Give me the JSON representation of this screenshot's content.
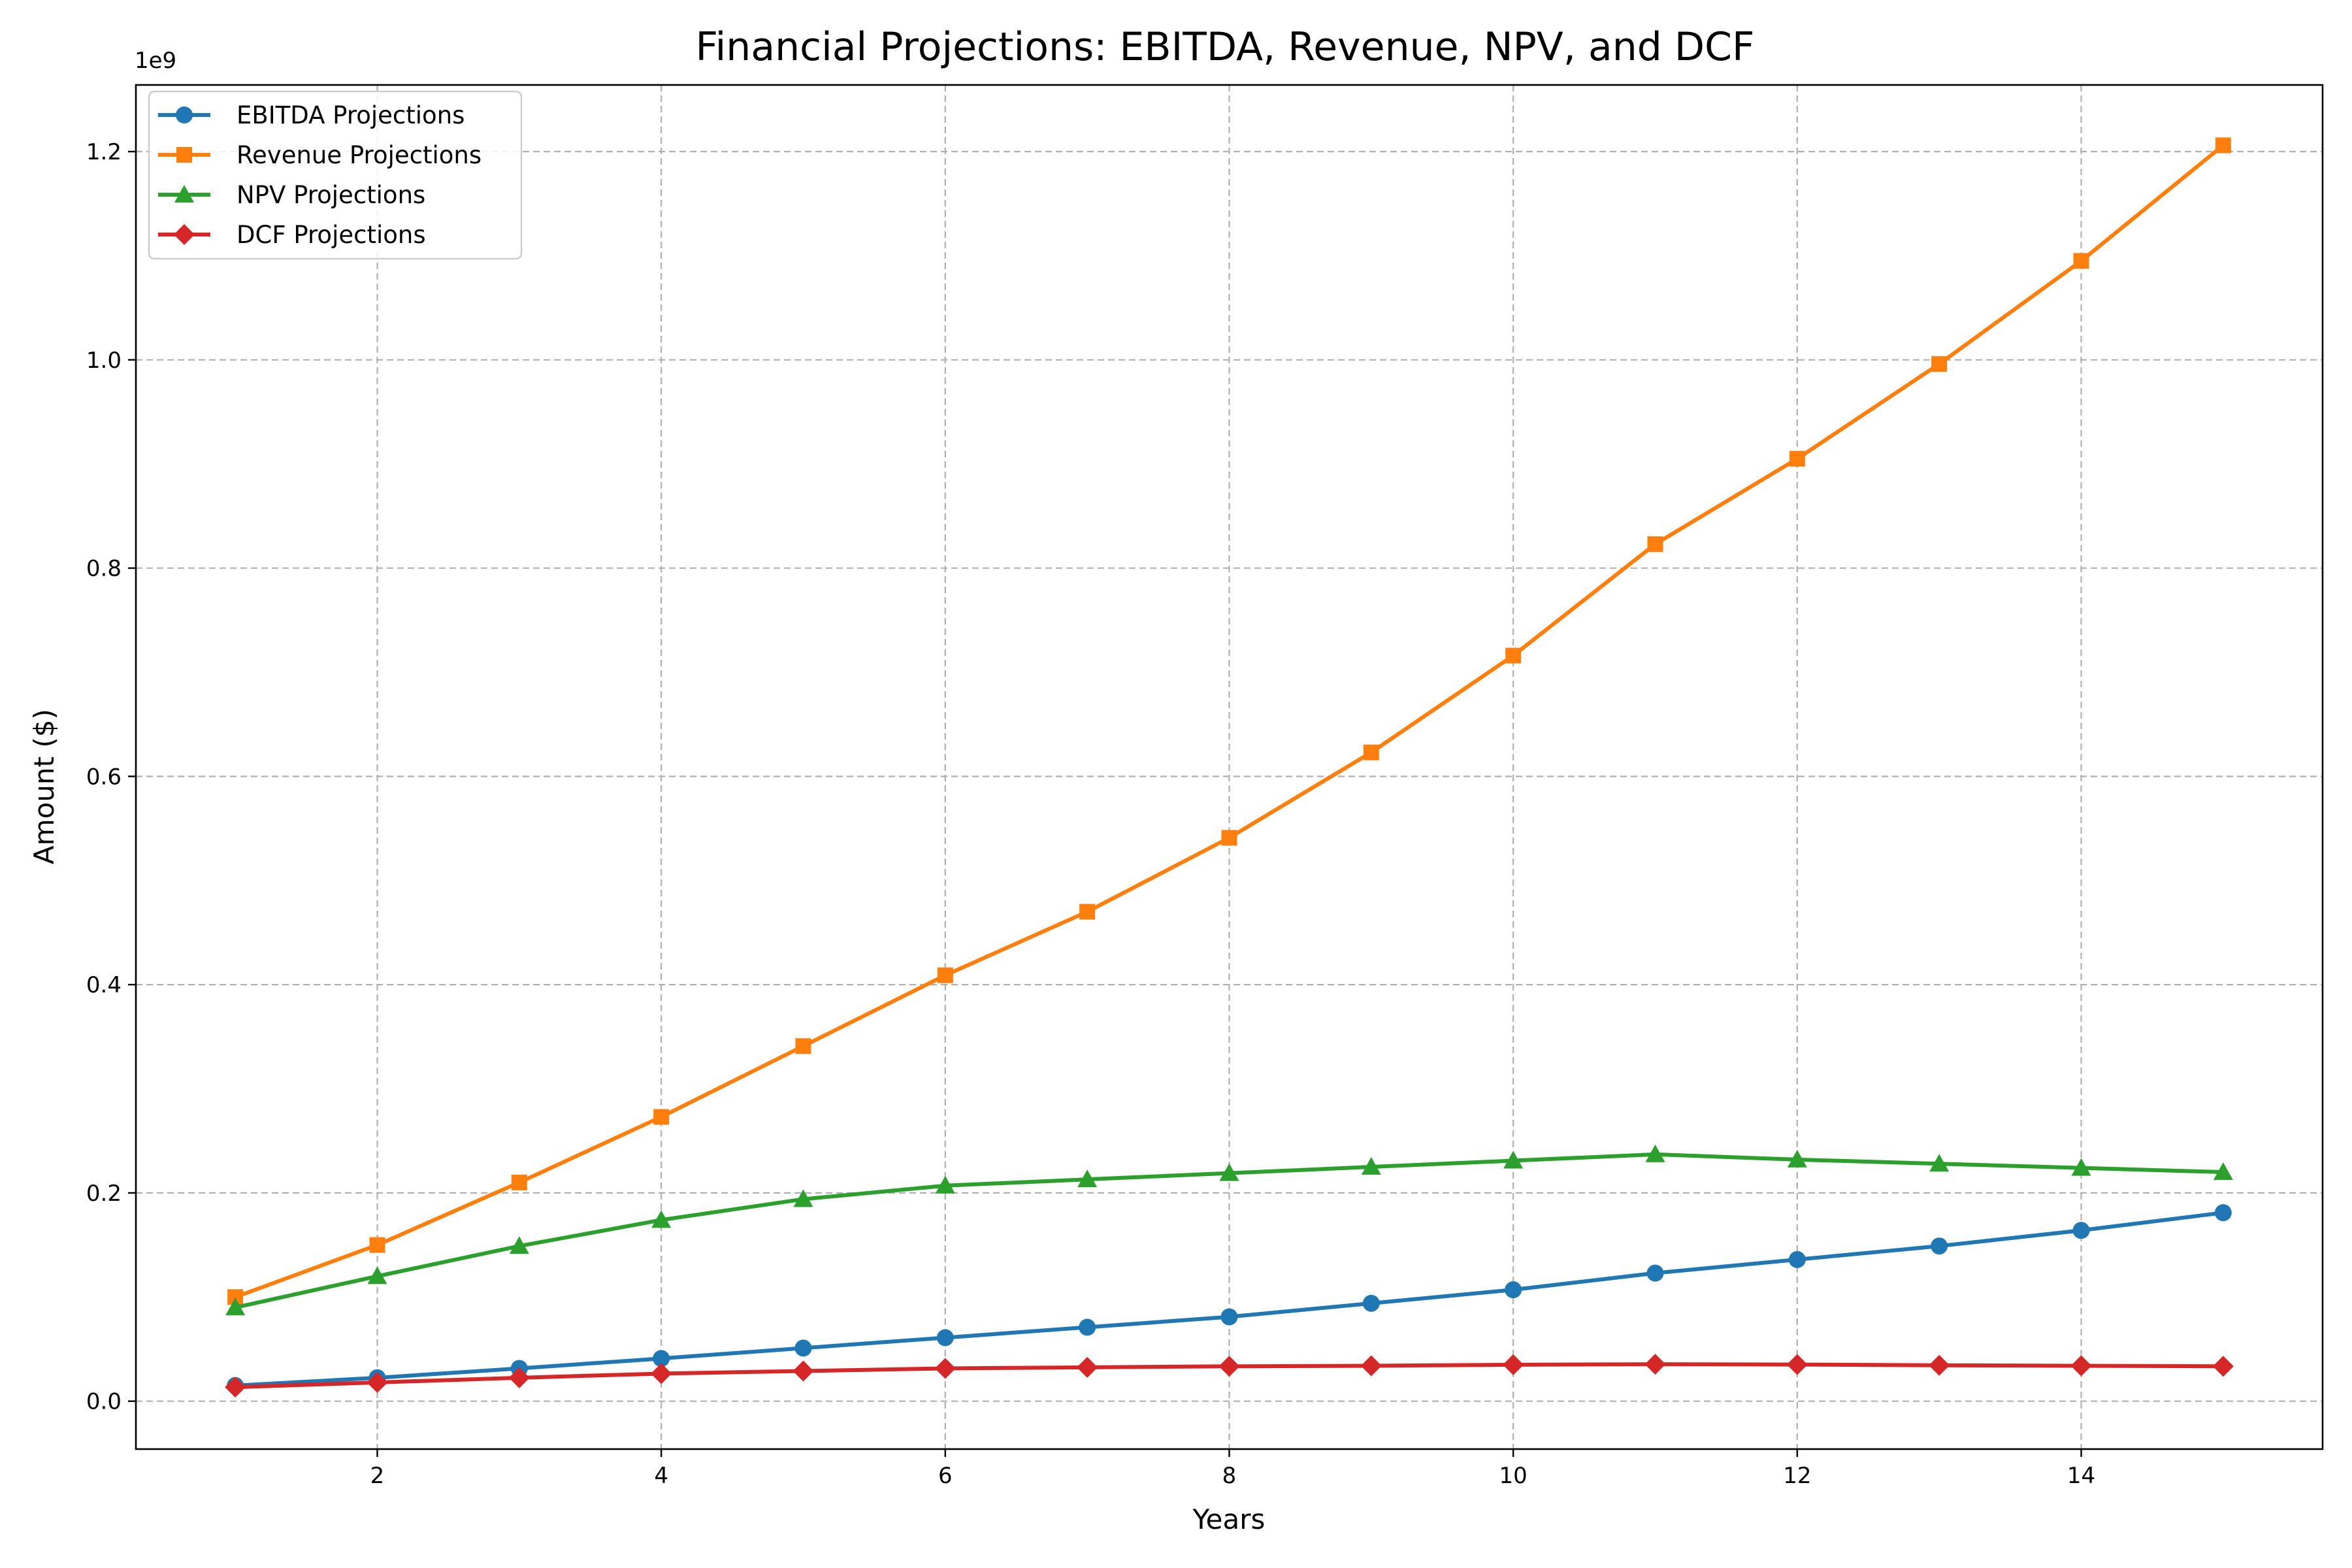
{
  "chart_data": {
    "type": "line",
    "title": "Financial Projections: EBITDA, Revenue, NPV, and DCF",
    "xlabel": "Years",
    "ylabel": "Amount ($)",
    "y_scale_label": "1e9",
    "x": [
      1,
      2,
      3,
      4,
      5,
      6,
      7,
      8,
      9,
      10,
      11,
      12,
      13,
      14,
      15
    ],
    "xlim": [
      0.3,
      15.7
    ],
    "ylim": [
      -0.046,
      1.264
    ],
    "x_ticks": [
      2,
      4,
      6,
      8,
      10,
      12,
      14
    ],
    "y_ticks": [
      0.0,
      0.2,
      0.4,
      0.6,
      0.8,
      1.0,
      1.2
    ],
    "x_tick_labels": [
      "2",
      "4",
      "6",
      "8",
      "10",
      "12",
      "14"
    ],
    "y_tick_labels": [
      "0.0",
      "0.2",
      "0.4",
      "0.6",
      "0.8",
      "1.0",
      "1.2"
    ],
    "grid": true,
    "legend_position": "top-left",
    "series": [
      {
        "name": "EBITDA Projections",
        "color": "#1f77b4",
        "marker": "circle",
        "values": [
          0.015,
          0.0225,
          0.0315,
          0.041,
          0.051,
          0.061,
          0.071,
          0.081,
          0.094,
          0.107,
          0.123,
          0.136,
          0.149,
          0.164,
          0.181
        ]
      },
      {
        "name": "Revenue Projections",
        "color": "#ff7f0e",
        "marker": "square",
        "values": [
          0.1,
          0.15,
          0.21,
          0.273,
          0.341,
          0.409,
          0.47,
          0.541,
          0.623,
          0.716,
          0.823,
          0.905,
          0.996,
          1.095,
          1.206
        ]
      },
      {
        "name": "NPV Projections",
        "color": "#2ca02c",
        "marker": "triangle",
        "values": [
          0.09,
          0.12,
          0.149,
          0.174,
          0.194,
          0.207,
          0.213,
          0.219,
          0.225,
          0.231,
          0.237,
          0.232,
          0.228,
          0.224,
          0.22
        ]
      },
      {
        "name": "DCF Projections",
        "color": "#d62728",
        "marker": "diamond",
        "values": [
          0.0135,
          0.018,
          0.0225,
          0.0265,
          0.029,
          0.0315,
          0.0325,
          0.0335,
          0.034,
          0.035,
          0.0355,
          0.0352,
          0.0345,
          0.034,
          0.0335
        ]
      }
    ]
  }
}
